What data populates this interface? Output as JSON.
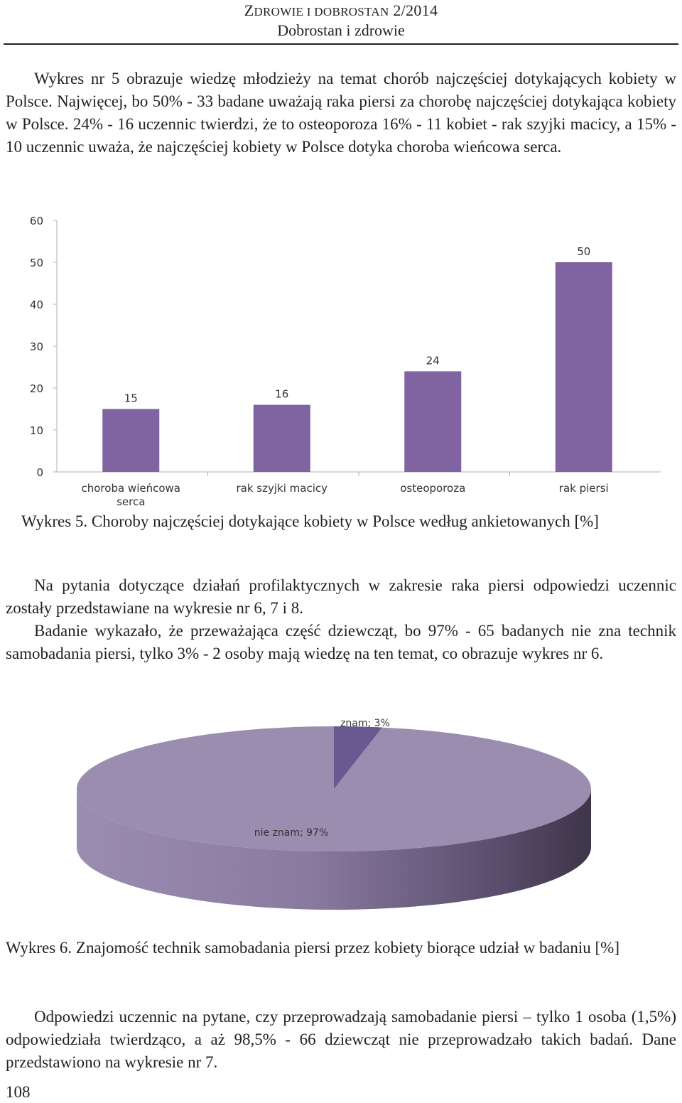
{
  "header": {
    "journal_first": "Z",
    "journal_rest": "DROWIE I DOBROSTAN",
    "journal_issue": "2/2014",
    "section": "Dobrostan i zdrowie"
  },
  "paragraph1": "Wykres nr 5 obrazuje wiedzę młodzieży na temat chorób najczęściej dotykających kobiety w Polsce. Najwięcej, bo 50% - 33 badane uważają raka piersi za chorobę najczęściej dotykająca kobiety w Polsce. 24% - 16 uczennic twierdzi, że to osteoporoza 16% - 11 kobiet - rak szyjki macicy, a 15% - 10 uczennic uważa, że najczęściej kobiety w Polsce dotyka choroba wieńcowa serca.",
  "caption5": "Wykres 5. Choroby najczęściej dotykające kobiety w Polsce według ankietowanych [%]",
  "paragraph2": "Na pytania dotyczące działań profilaktycznych w zakresie raka piersi odpowiedzi uczennic zostały przedstawiane na wykresie nr 6, 7 i 8.",
  "paragraph3": "Badanie wykazało, że przeważająca część dziewcząt, bo 97% - 65 badanych nie zna technik samobadania piersi, tylko 3% - 2 osoby mają wiedzę na ten temat, co obrazuje wykres nr 6.",
  "caption6": "Wykres 6. Znajomość technik samobadania piersi przez kobiety biorące udział w badaniu [%]",
  "paragraph4": "Odpowiedzi uczennic na pytane, czy przeprowadzają samobadanie piersi – tylko 1 osoba (1,5%) odpowiedziała twierdząco, a aż 98,5% - 66 dziewcząt nie przeprowadzało takich badań. Dane przedstawiono na wykresie nr 7.",
  "page_number": "108",
  "colors": {
    "bar": "#8064a2",
    "pie_main": "#9a8db0",
    "pie_small": "#6a5890",
    "grid": "#c8c8c8"
  },
  "chart_data": [
    {
      "type": "bar",
      "title": "",
      "categories": [
        "choroba wieńcowa serca",
        "rak szyjki macicy",
        "osteoporoza",
        "rak piersi"
      ],
      "category_lines": [
        [
          "choroba wieńcowa",
          "serca"
        ],
        [
          "rak szyjki macicy"
        ],
        [
          "osteoporoza"
        ],
        [
          "rak piersi"
        ]
      ],
      "values": [
        15,
        16,
        24,
        50
      ],
      "value_labels": [
        "15",
        "16",
        "24",
        "50"
      ],
      "yticks": [
        "0",
        "10",
        "20",
        "30",
        "40",
        "50",
        "60"
      ],
      "ylim": [
        0,
        60
      ],
      "xlabel": "",
      "ylabel": "",
      "grid": false
    },
    {
      "type": "pie",
      "title": "",
      "slices": [
        {
          "label": "znam; 3%",
          "value": 3
        },
        {
          "label": "nie znam; 97%",
          "value": 97
        }
      ],
      "style": "3d"
    }
  ]
}
